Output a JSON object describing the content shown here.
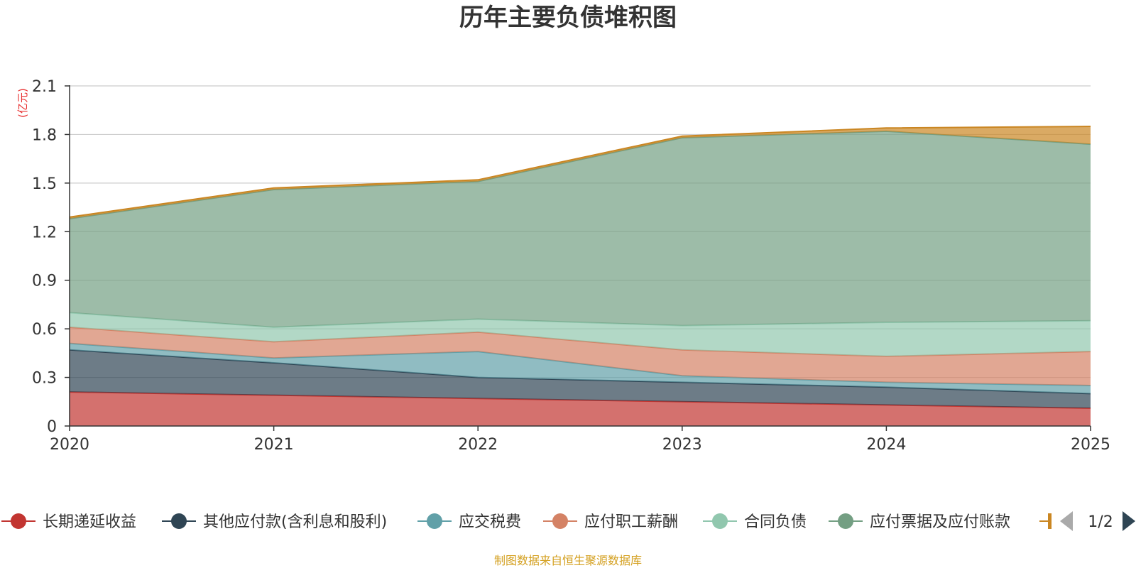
{
  "chart_data": {
    "type": "area",
    "stacked": true,
    "title": "历年主要负债堆积图",
    "ylabel": "(亿元)",
    "xlabel": "",
    "ylim": [
      0,
      2.1
    ],
    "yticks": [
      "0",
      "0.3",
      "0.6",
      "0.9",
      "1.2",
      "1.5",
      "1.8",
      "2.1"
    ],
    "ytick_values": [
      0,
      0.3,
      0.6,
      0.9,
      1.2,
      1.5,
      1.8,
      2.1
    ],
    "categories": [
      "2020",
      "2021",
      "2022",
      "2023",
      "2024",
      "2025"
    ],
    "grid": true,
    "series": [
      {
        "name": "长期递延收益",
        "color": "#c23531",
        "values": [
          0.21,
          0.19,
          0.17,
          0.15,
          0.13,
          0.11
        ]
      },
      {
        "name": "其他应付款(含利息和股利)",
        "color": "#2f4554",
        "values": [
          0.26,
          0.2,
          0.13,
          0.12,
          0.11,
          0.09
        ]
      },
      {
        "name": "应交税费",
        "color": "#61a0a8",
        "values": [
          0.04,
          0.03,
          0.16,
          0.04,
          0.03,
          0.05
        ]
      },
      {
        "name": "应付职工薪酬",
        "color": "#d48265",
        "values": [
          0.1,
          0.1,
          0.12,
          0.16,
          0.16,
          0.21
        ]
      },
      {
        "name": "合同负债",
        "color": "#91c7ae",
        "values": [
          0.09,
          0.09,
          0.08,
          0.15,
          0.21,
          0.19
        ]
      },
      {
        "name": "应付票据及应付账款",
        "color": "#749f83",
        "values": [
          0.58,
          0.85,
          0.85,
          1.16,
          1.18,
          1.09
        ]
      },
      {
        "name": "",
        "color": "#ca8622",
        "values": [
          0.01,
          0.01,
          0.01,
          0.01,
          0.02,
          0.11
        ]
      }
    ],
    "legend": {
      "position": "bottom",
      "page": "1/2"
    },
    "footer": "制图数据来自恒生聚源数据库"
  }
}
